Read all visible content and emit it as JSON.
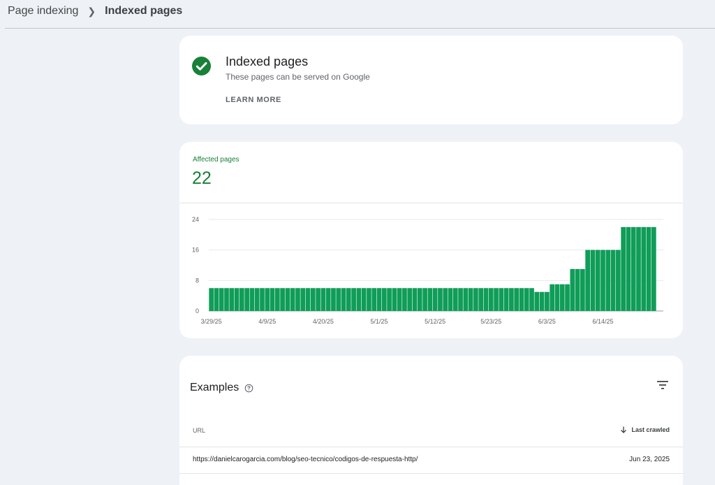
{
  "breadcrumb": {
    "parent": "Page indexing",
    "current": "Indexed pages"
  },
  "status_card": {
    "title": "Indexed pages",
    "subtitle": "These pages can be served on Google",
    "learn_more": "LEARN MORE",
    "icon": "check-circle-icon"
  },
  "chart_card": {
    "label": "Affected pages",
    "value": "22"
  },
  "chart_data": {
    "type": "bar",
    "color": "#0f9d58",
    "ylim": [
      0,
      24
    ],
    "y_ticks": [
      "0",
      "8",
      "16",
      "24"
    ],
    "x_tick_labels": [
      "3/29/25",
      "4/9/25",
      "4/20/25",
      "5/1/25",
      "5/12/25",
      "5/23/25",
      "6/3/25",
      "6/14/25"
    ],
    "values": [
      6,
      6,
      6,
      6,
      6,
      6,
      6,
      6,
      6,
      6,
      6,
      6,
      6,
      6,
      6,
      6,
      6,
      6,
      6,
      6,
      6,
      6,
      6,
      6,
      6,
      6,
      6,
      6,
      6,
      6,
      6,
      6,
      6,
      6,
      6,
      6,
      6,
      6,
      6,
      6,
      6,
      6,
      6,
      6,
      6,
      6,
      6,
      6,
      6,
      6,
      6,
      6,
      6,
      6,
      6,
      6,
      6,
      6,
      6,
      6,
      6,
      6,
      6,
      6,
      5,
      5,
      5,
      7,
      7,
      7,
      7,
      11,
      11,
      11,
      16,
      16,
      16,
      16,
      16,
      16,
      16,
      22,
      22,
      22,
      22,
      22,
      22,
      22
    ]
  },
  "examples": {
    "title": "Examples",
    "help_icon": "help-icon",
    "filter_icon": "filter-icon",
    "col_url": "URL",
    "col_last_crawled": "Last crawled",
    "rows": [
      {
        "url": "https://danielcarogarcia.com/blog/seo-tecnico/codigos-de-respuesta-http/",
        "date": "Jun 23, 2025"
      }
    ]
  }
}
